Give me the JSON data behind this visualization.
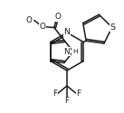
{
  "bg": "#ffffff",
  "lc": "#1a1a1a",
  "lw": 1.1,
  "fs": 5.8,
  "figsize": [
    1.37,
    1.25
  ],
  "dpi": 100,
  "xlim": [
    0,
    137
  ],
  "ylim": [
    0,
    125
  ]
}
